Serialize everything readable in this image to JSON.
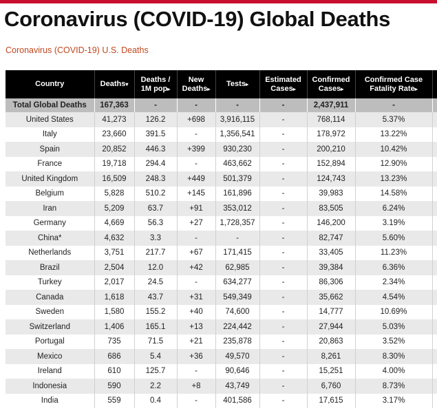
{
  "title": "Coronavirus (COVID-19) Global Deaths",
  "subtitle_link": "Coronavirus (COVID-19) U.S. Deaths",
  "colors": {
    "accent_bar": "#c8102e",
    "link": "#c0461d",
    "header_bg": "#000000",
    "total_row_bg": "#bdbdbd",
    "stripe": "#e9e9e9"
  },
  "columns": [
    {
      "line1": "Country",
      "line2": "",
      "sort": ""
    },
    {
      "line1": "Deaths",
      "line2": "",
      "sort": "▾"
    },
    {
      "line1": "Deaths /",
      "line2": "1M pop",
      "sort": "▸"
    },
    {
      "line1": "New",
      "line2": "Deaths",
      "sort": "▸"
    },
    {
      "line1": "Tests",
      "line2": "",
      "sort": "▸"
    },
    {
      "line1": "Estimated",
      "line2": "Cases",
      "sort": "▸"
    },
    {
      "line1": "Confirmed",
      "line2": "Cases",
      "sort": "▸"
    },
    {
      "line1": "Confirmed Case",
      "line2": "Fatality Rate",
      "sort": "▸"
    }
  ],
  "total": [
    "Total Global Deaths",
    "167,363",
    "-",
    "-",
    "-",
    "-",
    "2,437,911",
    "-"
  ],
  "rows": [
    [
      "United States",
      "41,273",
      "126.2",
      "+698",
      "3,916,115",
      "-",
      "768,114",
      "5.37%"
    ],
    [
      "Italy",
      "23,660",
      "391.5",
      "-",
      "1,356,541",
      "-",
      "178,972",
      "13.22%"
    ],
    [
      "Spain",
      "20,852",
      "446.3",
      "+399",
      "930,230",
      "-",
      "200,210",
      "10.42%"
    ],
    [
      "France",
      "19,718",
      "294.4",
      "-",
      "463,662",
      "-",
      "152,894",
      "12.90%"
    ],
    [
      "United Kingdom",
      "16,509",
      "248.3",
      "+449",
      "501,379",
      "-",
      "124,743",
      "13.23%"
    ],
    [
      "Belgium",
      "5,828",
      "510.2",
      "+145",
      "161,896",
      "-",
      "39,983",
      "14.58%"
    ],
    [
      "Iran",
      "5,209",
      "63.7",
      "+91",
      "353,012",
      "-",
      "83,505",
      "6.24%"
    ],
    [
      "Germany",
      "4,669",
      "56.3",
      "+27",
      "1,728,357",
      "-",
      "146,200",
      "3.19%"
    ],
    [
      "China*",
      "4,632",
      "3.3",
      "-",
      "-",
      "-",
      "82,747",
      "5.60%"
    ],
    [
      "Netherlands",
      "3,751",
      "217.7",
      "+67",
      "171,415",
      "-",
      "33,405",
      "11.23%"
    ],
    [
      "Brazil",
      "2,504",
      "12.0",
      "+42",
      "62,985",
      "-",
      "39,384",
      "6.36%"
    ],
    [
      "Turkey",
      "2,017",
      "24.5",
      "-",
      "634,277",
      "-",
      "86,306",
      "2.34%"
    ],
    [
      "Canada",
      "1,618",
      "43.7",
      "+31",
      "549,349",
      "-",
      "35,662",
      "4.54%"
    ],
    [
      "Sweden",
      "1,580",
      "155.2",
      "+40",
      "74,600",
      "-",
      "14,777",
      "10.69%"
    ],
    [
      "Switzerland",
      "1,406",
      "165.1",
      "+13",
      "224,442",
      "-",
      "27,944",
      "5.03%"
    ],
    [
      "Portugal",
      "735",
      "71.5",
      "+21",
      "235,878",
      "-",
      "20,863",
      "3.52%"
    ],
    [
      "Mexico",
      "686",
      "5.4",
      "+36",
      "49,570",
      "-",
      "8,261",
      "8.30%"
    ],
    [
      "Ireland",
      "610",
      "125.7",
      "-",
      "90,646",
      "-",
      "15,251",
      "4.00%"
    ],
    [
      "Indonesia",
      "590",
      "2.2",
      "+8",
      "43,749",
      "-",
      "6,760",
      "8.73%"
    ],
    [
      "India",
      "559",
      "0.4",
      "-",
      "401,586",
      "-",
      "17,615",
      "3.17%"
    ]
  ]
}
